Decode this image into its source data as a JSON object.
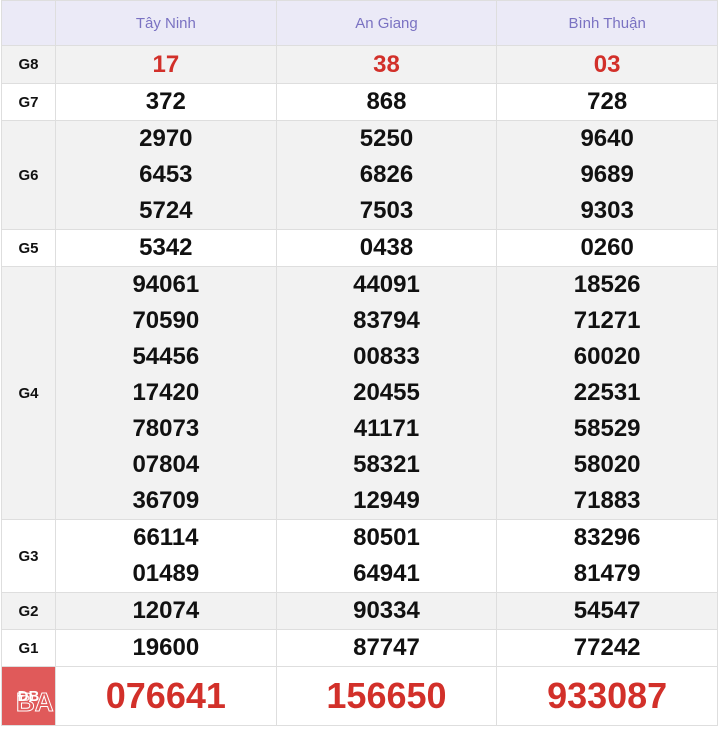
{
  "header": {
    "provinces": [
      "Tây Ninh",
      "An Giang",
      "Bình Thuận"
    ]
  },
  "accent_colors": {
    "header_text": "#7a72c2",
    "prize_red": "#d2302a",
    "db_label_bg": "#e05a5a"
  },
  "rows": [
    {
      "label": "G8",
      "values": [
        [
          "17"
        ],
        [
          "38"
        ],
        [
          "03"
        ]
      ]
    },
    {
      "label": "G7",
      "values": [
        [
          "372"
        ],
        [
          "868"
        ],
        [
          "728"
        ]
      ]
    },
    {
      "label": "G6",
      "values": [
        [
          "2970",
          "6453",
          "5724"
        ],
        [
          "5250",
          "6826",
          "7503"
        ],
        [
          "9640",
          "9689",
          "9303"
        ]
      ]
    },
    {
      "label": "G5",
      "values": [
        [
          "5342"
        ],
        [
          "0438"
        ],
        [
          "0260"
        ]
      ]
    },
    {
      "label": "G4",
      "values": [
        [
          "94061",
          "70590",
          "54456",
          "17420",
          "78073",
          "07804",
          "36709"
        ],
        [
          "44091",
          "83794",
          "00833",
          "20455",
          "41171",
          "58321",
          "12949"
        ],
        [
          "18526",
          "71271",
          "60020",
          "22531",
          "58529",
          "58020",
          "71883"
        ]
      ]
    },
    {
      "label": "G3",
      "values": [
        [
          "66114",
          "01489"
        ],
        [
          "80501",
          "64941"
        ],
        [
          "83296",
          "81479"
        ]
      ]
    },
    {
      "label": "G2",
      "values": [
        [
          "12074"
        ],
        [
          "90334"
        ],
        [
          "54547"
        ]
      ]
    },
    {
      "label": "G1",
      "values": [
        [
          "19600"
        ],
        [
          "87747"
        ],
        [
          "77242"
        ]
      ]
    },
    {
      "label": "ĐB",
      "values": [
        [
          "076641"
        ],
        [
          "156650"
        ],
        [
          "933087"
        ]
      ]
    }
  ]
}
